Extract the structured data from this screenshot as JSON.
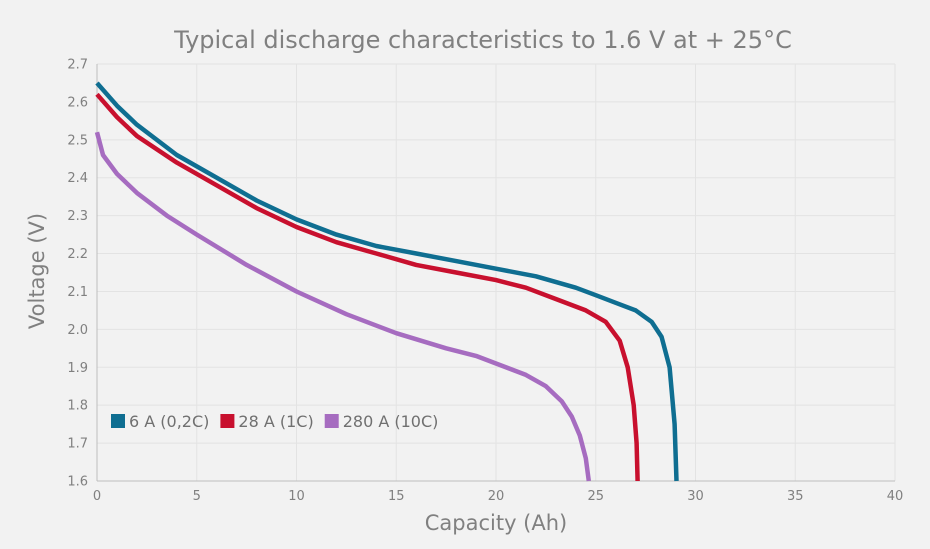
{
  "chart_data": {
    "type": "line",
    "title": "Typical discharge characteristics to 1.6 V at + 25°C",
    "xlabel": "Capacity (Ah)",
    "ylabel": "Voltage (V)",
    "xlim": [
      0,
      40
    ],
    "ylim": [
      1.6,
      2.7
    ],
    "x_ticks": [
      "0",
      "5",
      "10",
      "15",
      "20",
      "25",
      "30",
      "35",
      "40"
    ],
    "y_ticks": [
      "1.6",
      "1.7",
      "1.8",
      "1.9",
      "2.0",
      "2.1",
      "2.2",
      "2.3",
      "2.4",
      "2.5",
      "2.6",
      "2.7"
    ],
    "grid": true,
    "legend_position": "bottom-left",
    "series": [
      {
        "name": "6 A (0,2C)",
        "color": "#0f6e91",
        "points": [
          [
            0,
            2.65
          ],
          [
            1,
            2.59
          ],
          [
            2,
            2.54
          ],
          [
            4,
            2.46
          ],
          [
            6,
            2.4
          ],
          [
            8,
            2.34
          ],
          [
            10,
            2.29
          ],
          [
            12,
            2.25
          ],
          [
            14,
            2.22
          ],
          [
            16,
            2.2
          ],
          [
            18,
            2.18
          ],
          [
            20,
            2.16
          ],
          [
            22,
            2.14
          ],
          [
            24,
            2.11
          ],
          [
            25,
            2.09
          ],
          [
            26,
            2.07
          ],
          [
            27,
            2.05
          ],
          [
            27.8,
            2.02
          ],
          [
            28.3,
            1.98
          ],
          [
            28.7,
            1.9
          ],
          [
            28.95,
            1.75
          ],
          [
            29.05,
            1.6
          ]
        ]
      },
      {
        "name": "28 A (1C)",
        "color": "#c8102e",
        "points": [
          [
            0,
            2.62
          ],
          [
            1,
            2.56
          ],
          [
            2,
            2.51
          ],
          [
            4,
            2.44
          ],
          [
            6,
            2.38
          ],
          [
            8,
            2.32
          ],
          [
            10,
            2.27
          ],
          [
            12,
            2.23
          ],
          [
            14,
            2.2
          ],
          [
            16,
            2.17
          ],
          [
            18,
            2.15
          ],
          [
            20,
            2.13
          ],
          [
            21.5,
            2.11
          ],
          [
            23,
            2.08
          ],
          [
            24.5,
            2.05
          ],
          [
            25.5,
            2.02
          ],
          [
            26.2,
            1.97
          ],
          [
            26.6,
            1.9
          ],
          [
            26.9,
            1.8
          ],
          [
            27.05,
            1.7
          ],
          [
            27.1,
            1.6
          ]
        ]
      },
      {
        "name": "280 A (10C)",
        "color": "#a66cc0",
        "points": [
          [
            0,
            2.52
          ],
          [
            0.3,
            2.46
          ],
          [
            1,
            2.41
          ],
          [
            2,
            2.36
          ],
          [
            3.5,
            2.3
          ],
          [
            5,
            2.25
          ],
          [
            7.5,
            2.17
          ],
          [
            10,
            2.1
          ],
          [
            12.5,
            2.04
          ],
          [
            15,
            1.99
          ],
          [
            17.5,
            1.95
          ],
          [
            19,
            1.93
          ],
          [
            20,
            1.91
          ],
          [
            21.5,
            1.88
          ],
          [
            22.5,
            1.85
          ],
          [
            23.3,
            1.81
          ],
          [
            23.8,
            1.77
          ],
          [
            24.2,
            1.72
          ],
          [
            24.5,
            1.66
          ],
          [
            24.65,
            1.6
          ]
        ]
      }
    ]
  }
}
